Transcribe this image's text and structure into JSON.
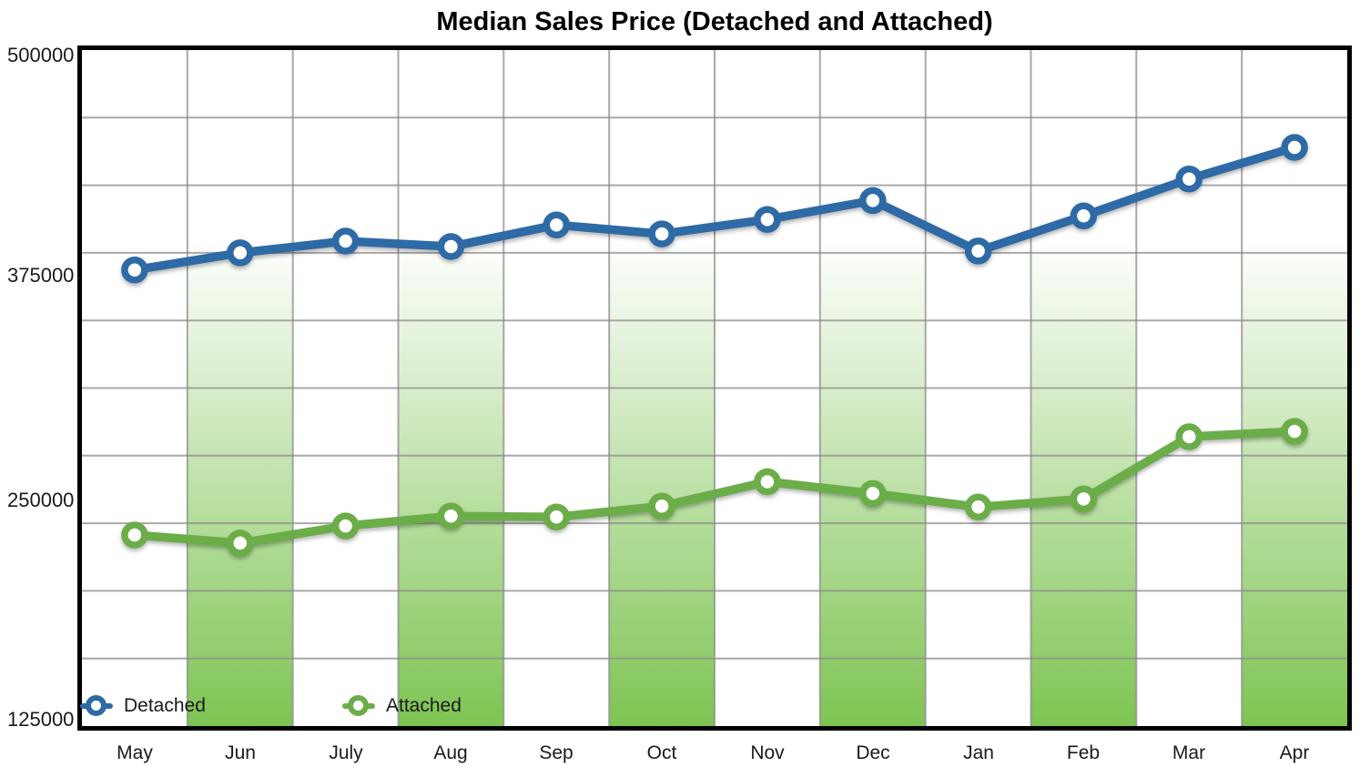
{
  "title": "Median Sales Price (Detached and Attached)",
  "colors": {
    "detached": "#2E6AA5",
    "attached": "#6BAD48",
    "band_green": "#77C14A",
    "gridline": "#8C8C8C",
    "frame": "#000000",
    "text": "#1A1A1A"
  },
  "chart_data": {
    "type": "line",
    "title": "Median Sales Price (Detached and Attached)",
    "categories": [
      "May",
      "Jun",
      "July",
      "Aug",
      "Sep",
      "Oct",
      "Nov",
      "Dec",
      "Jan",
      "Feb",
      "Mar",
      "Apr"
    ],
    "series": [
      {
        "name": "Detached",
        "color": "#2E6AA5",
        "values": [
          378000,
          387500,
          394000,
          391000,
          403000,
          398000,
          406000,
          416500,
          388500,
          408000,
          428500,
          446000
        ]
      },
      {
        "name": "Attached",
        "color": "#6BAD48",
        "values": [
          231000,
          226500,
          236000,
          241500,
          241000,
          247000,
          260500,
          254000,
          246500,
          251000,
          285500,
          288500
        ]
      }
    ],
    "xlabel": "",
    "ylabel": "",
    "ylim": [
      125000,
      500000
    ],
    "y_ticks": [
      {
        "label": "500000",
        "value": 500000
      },
      {
        "label": "375000",
        "value": 375000
      },
      {
        "label": "250000",
        "value": 250000
      },
      {
        "label": "125000",
        "value": 125000
      }
    ],
    "y_gridline_step": 37500,
    "grid": true,
    "legend_position": "inside-bottom-left",
    "band_column_indices": [
      1,
      3,
      5,
      7,
      9,
      11
    ],
    "band_color": "#77C14A"
  }
}
